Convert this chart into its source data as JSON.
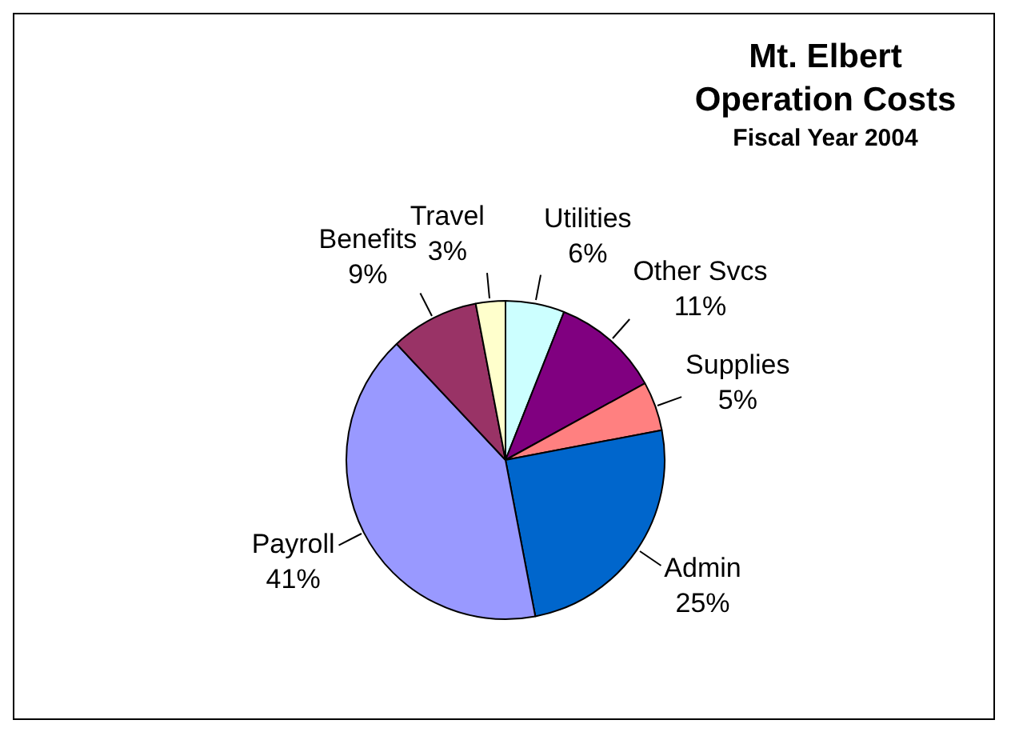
{
  "chart_data": {
    "type": "pie",
    "title": "Mt. Elbert Operation Costs",
    "subtitle": "Fiscal Year 2004",
    "categories": [
      "Utilities",
      "Other Svcs",
      "Supplies",
      "Admin",
      "Payroll",
      "Benefits",
      "Travel"
    ],
    "values": [
      6,
      11,
      5,
      25,
      41,
      9,
      3
    ],
    "colors": [
      "#ccffff",
      "#800080",
      "#ff8080",
      "#0066cc",
      "#9999ff",
      "#993366",
      "#ffffcc"
    ],
    "value_labels": [
      "6%",
      "11%",
      "5%",
      "25%",
      "41%",
      "9%",
      "3%"
    ],
    "legend": false
  }
}
